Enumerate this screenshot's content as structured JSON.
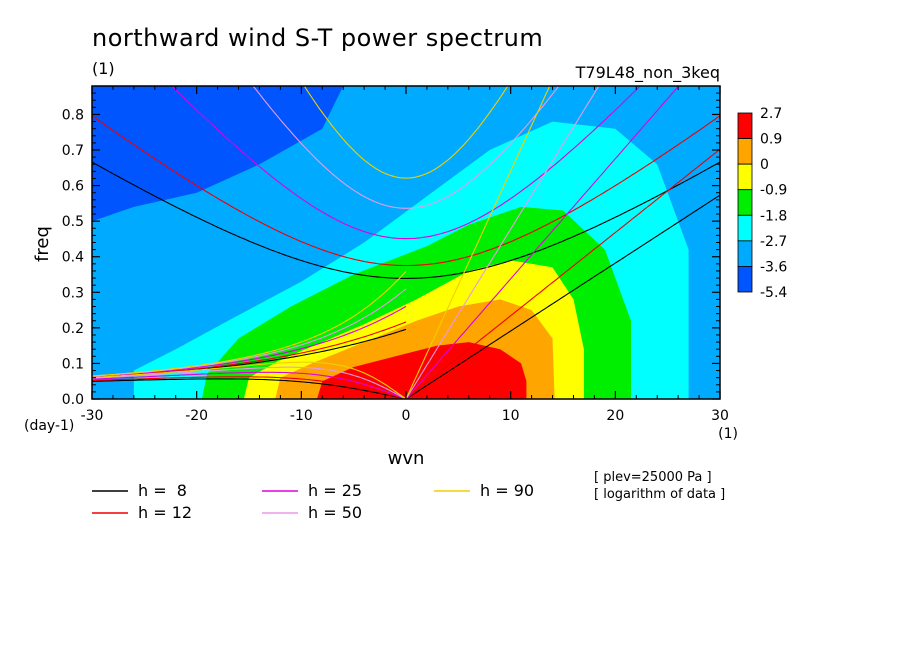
{
  "chart_data": {
    "type": "heatmap",
    "title": "northward wind S-T power spectrum",
    "subtitle_left": "(1)",
    "subtitle_right": "T79L48_non_3keq",
    "xlabel": "wvn",
    "ylabel": "freq",
    "x_unit_label": "(1)",
    "y_unit_label": "(day-1)",
    "xlim": [
      -30,
      30
    ],
    "ylim": [
      0,
      0.88
    ],
    "x_ticks": [
      -30,
      -20,
      -10,
      0,
      10,
      20,
      30
    ],
    "x_tick_labels": [
      "-30",
      "-20",
      "-10",
      "0",
      "10",
      "20",
      "30"
    ],
    "y_ticks": [
      0,
      0.1,
      0.2,
      0.3,
      0.4,
      0.5,
      0.6,
      0.7,
      0.8
    ],
    "y_tick_labels": [
      "0.0",
      "0.1",
      "0.2",
      "0.3",
      "0.4",
      "0.5",
      "0.6",
      "0.7",
      "0.8"
    ],
    "colorbar": {
      "labels": [
        "2.7",
        "0.9",
        "0",
        "-0.9",
        "-1.8",
        "-2.7",
        "-3.6",
        "-5.4"
      ],
      "colors": [
        "#ff0000",
        "#ffa500",
        "#ffff00",
        "#00ee00",
        "#00ffff",
        "#00aaff",
        "#0055ff"
      ]
    },
    "fill_levels": [
      {
        "level": "-3.6",
        "color": "#00aaff"
      },
      {
        "level": "-2.7",
        "color": "#00ffff"
      },
      {
        "level": "-1.8",
        "color": "#00ee00"
      },
      {
        "level": "-0.9",
        "color": "#ffff00"
      },
      {
        "level": "0",
        "color": "#ffa500"
      },
      {
        "level": "0.9",
        "color": "#ff0000"
      }
    ],
    "background_color": "#0055ff",
    "dispersion_curves": [
      {
        "name": "h =  8",
        "h": 8,
        "color": "#000000"
      },
      {
        "name": "h = 12",
        "h": 12,
        "color": "#ee0000"
      },
      {
        "name": "h = 25",
        "h": 25,
        "color": "#dd00dd"
      },
      {
        "name": "h = 50",
        "h": 50,
        "color": "#e89ae8"
      },
      {
        "name": "h = 90",
        "h": 90,
        "color": "#f0d000"
      }
    ],
    "annotations": [
      "[ plev=25000 Pa ]",
      "[ logarithm of data ]"
    ]
  }
}
